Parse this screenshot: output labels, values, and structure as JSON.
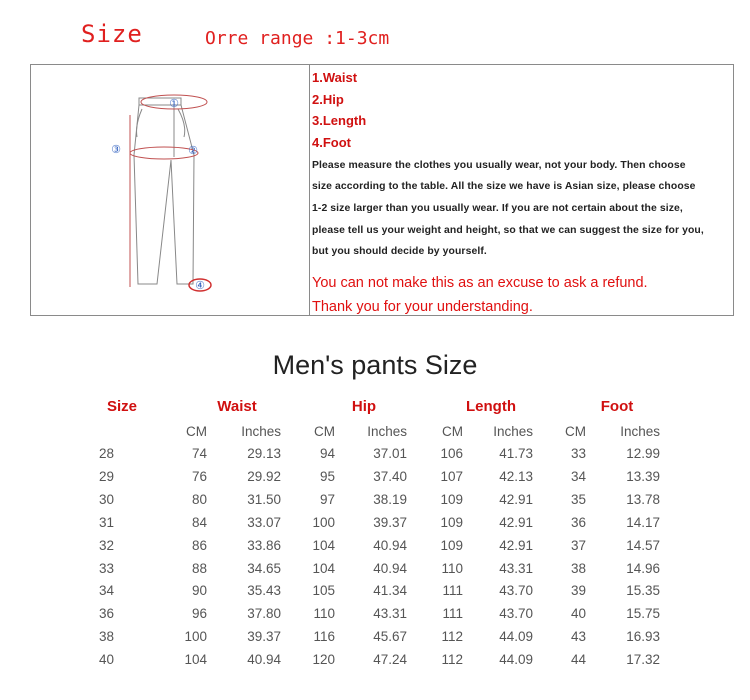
{
  "header": {
    "title": "Size",
    "range_note": "Orre range :1-3cm"
  },
  "diagram": {
    "labels": [
      "①",
      "②",
      "③",
      "④"
    ]
  },
  "measurements": [
    "1.Waist",
    "2.Hip",
    "3.Length",
    "4.Foot"
  ],
  "instructions": [
    "Please measure the clothes you usually wear, not your body. Then choose",
    "size according to the table. All the size we have is Asian size, please choose",
    "1-2 size larger than you usually wear. If you are not certain about the size,",
    "please tell us your weight and height, so that we can suggest the size for you,",
    "but you should decide by yourself."
  ],
  "warning": [
    "You can not make this as an excuse to ask a refund.",
    "Thank you for your understanding."
  ],
  "table": {
    "title": "Men's pants Size",
    "groups": [
      "Size",
      "Waist",
      "Hip",
      "Length",
      "Foot"
    ],
    "subheaders": [
      "CM",
      "Inches",
      "CM",
      "Inches",
      "CM",
      "Inches",
      "CM",
      "Inches"
    ],
    "rows": [
      [
        "28",
        "74",
        "29.13",
        "94",
        "37.01",
        "106",
        "41.73",
        "33",
        "12.99"
      ],
      [
        "29",
        "76",
        "29.92",
        "95",
        "37.40",
        "107",
        "42.13",
        "34",
        "13.39"
      ],
      [
        "30",
        "80",
        "31.50",
        "97",
        "38.19",
        "109",
        "42.91",
        "35",
        "13.78"
      ],
      [
        "31",
        "84",
        "33.07",
        "100",
        "39.37",
        "109",
        "42.91",
        "36",
        "14.17"
      ],
      [
        "32",
        "86",
        "33.86",
        "104",
        "40.94",
        "109",
        "42.91",
        "37",
        "14.57"
      ],
      [
        "33",
        "88",
        "34.65",
        "104",
        "40.94",
        "110",
        "43.31",
        "38",
        "14.96"
      ],
      [
        "34",
        "90",
        "35.43",
        "105",
        "41.34",
        "111",
        "43.70",
        "39",
        "15.35"
      ],
      [
        "36",
        "96",
        "37.80",
        "110",
        "43.31",
        "111",
        "43.70",
        "40",
        "15.75"
      ],
      [
        "38",
        "100",
        "39.37",
        "116",
        "45.67",
        "112",
        "44.09",
        "43",
        "16.93"
      ],
      [
        "40",
        "104",
        "40.94",
        "120",
        "47.24",
        "112",
        "44.09",
        "44",
        "17.32"
      ]
    ]
  },
  "colors": {
    "accent_red": "#d01010",
    "text": "#555555",
    "border": "#8a8a8a"
  }
}
